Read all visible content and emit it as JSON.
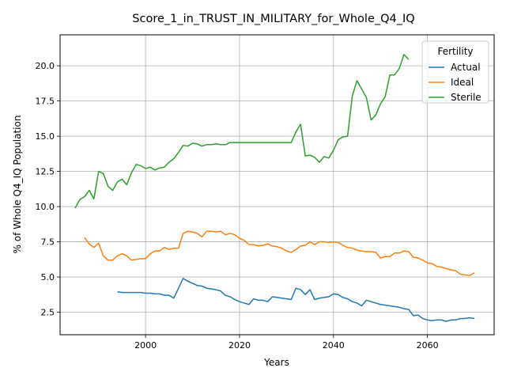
{
  "chart_data": {
    "type": "line",
    "title": "Score_1_in_TRUST_IN_MILITARY_for_Whole_Q4_IQ",
    "xlabel": "Years",
    "ylabel": "% of Whole Q4_IQ Population",
    "xlim": [
      1981.8,
      2074.2
    ],
    "ylim": [
      0.9,
      22.2
    ],
    "xticks": [
      2000,
      2020,
      2040,
      2060
    ],
    "xtick_labels": [
      "2000",
      "2020",
      "2040",
      "2060"
    ],
    "yticks": [
      2.5,
      5.0,
      7.5,
      10.0,
      12.5,
      15.0,
      17.5,
      20.0
    ],
    "ytick_labels": [
      "2.5",
      "5.0",
      "7.5",
      "10.0",
      "12.5",
      "15.0",
      "17.5",
      "20.0"
    ],
    "grid": true,
    "legend": {
      "title": "Fertility",
      "placement": "top-right"
    },
    "series": [
      {
        "name": "Actual",
        "color": "#1f77b4",
        "x": [
          1994,
          1995,
          1996,
          1997,
          1998,
          1999,
          2000,
          2001,
          2002,
          2003,
          2004,
          2005,
          2006,
          2007,
          2008,
          2009,
          2010,
          2011,
          2012,
          2013,
          2014,
          2015,
          2016,
          2017,
          2018,
          2019,
          2020,
          2021,
          2022,
          2023,
          2024,
          2025,
          2026,
          2027,
          2028,
          2029,
          2030,
          2031,
          2032,
          2033,
          2034,
          2035,
          2036,
          2037,
          2038,
          2039,
          2040,
          2041,
          2042,
          2043,
          2044,
          2045,
          2046,
          2047,
          2048,
          2049,
          2050,
          2051,
          2052,
          2053,
          2054,
          2055,
          2056,
          2057,
          2058,
          2059,
          2060,
          2061,
          2062,
          2063,
          2064,
          2065,
          2066,
          2067,
          2068,
          2069,
          2070
        ],
        "values": [
          3.95,
          3.9,
          3.9,
          3.9,
          3.9,
          3.9,
          3.85,
          3.85,
          3.8,
          3.8,
          3.7,
          3.7,
          3.5,
          4.2,
          4.9,
          4.7,
          4.55,
          4.4,
          4.35,
          4.2,
          4.15,
          4.1,
          4.0,
          3.7,
          3.6,
          3.4,
          3.25,
          3.15,
          3.05,
          3.45,
          3.35,
          3.35,
          3.25,
          3.6,
          3.55,
          3.5,
          3.45,
          3.4,
          4.2,
          4.1,
          3.75,
          4.1,
          3.4,
          3.5,
          3.55,
          3.6,
          3.8,
          3.75,
          3.55,
          3.45,
          3.25,
          3.15,
          2.95,
          3.35,
          3.25,
          3.15,
          3.05,
          3.0,
          2.95,
          2.9,
          2.85,
          2.75,
          2.7,
          2.25,
          2.3,
          2.05,
          1.95,
          1.9,
          1.95,
          1.95,
          1.85,
          1.95,
          1.95,
          2.05,
          2.05,
          2.1,
          2.05
        ]
      },
      {
        "name": "Ideal",
        "color": "#ff7f0e",
        "x": [
          1987,
          1988,
          1989,
          1990,
          1991,
          1992,
          1993,
          1994,
          1995,
          1996,
          1997,
          1998,
          1999,
          2000,
          2001,
          2002,
          2003,
          2004,
          2005,
          2006,
          2007,
          2008,
          2009,
          2010,
          2011,
          2012,
          2013,
          2014,
          2015,
          2016,
          2017,
          2018,
          2019,
          2020,
          2021,
          2022,
          2023,
          2024,
          2025,
          2026,
          2027,
          2028,
          2029,
          2030,
          2031,
          2032,
          2033,
          2034,
          2035,
          2036,
          2037,
          2038,
          2039,
          2040,
          2041,
          2042,
          2043,
          2044,
          2045,
          2046,
          2047,
          2048,
          2049,
          2050,
          2051,
          2052,
          2053,
          2054,
          2055,
          2056,
          2057,
          2058,
          2059,
          2060,
          2061,
          2062,
          2063,
          2064,
          2065,
          2066,
          2067,
          2068,
          2069,
          2070
        ],
        "values": [
          7.8,
          7.35,
          7.1,
          7.4,
          6.5,
          6.2,
          6.2,
          6.5,
          6.65,
          6.5,
          6.2,
          6.25,
          6.3,
          6.3,
          6.65,
          6.85,
          6.85,
          7.1,
          6.95,
          7.05,
          7.05,
          8.1,
          8.25,
          8.2,
          8.1,
          7.85,
          8.25,
          8.25,
          8.2,
          8.25,
          8.0,
          8.1,
          8.0,
          7.75,
          7.6,
          7.3,
          7.3,
          7.2,
          7.25,
          7.35,
          7.2,
          7.15,
          7.05,
          6.85,
          6.75,
          6.95,
          7.2,
          7.25,
          7.5,
          7.3,
          7.5,
          7.5,
          7.45,
          7.5,
          7.45,
          7.25,
          7.1,
          7.05,
          6.9,
          6.85,
          6.8,
          6.8,
          6.75,
          6.35,
          6.45,
          6.45,
          6.7,
          6.7,
          6.85,
          6.8,
          6.4,
          6.35,
          6.2,
          6.0,
          5.95,
          5.75,
          5.7,
          5.6,
          5.5,
          5.45,
          5.2,
          5.15,
          5.1,
          5.3
        ]
      },
      {
        "name": "Sterile",
        "color": "#2ca02c",
        "x": [
          1985,
          1986,
          1987,
          1988,
          1989,
          1990,
          1991,
          1992,
          1993,
          1994,
          1995,
          1996,
          1997,
          1998,
          1999,
          2000,
          2001,
          2002,
          2003,
          2004,
          2005,
          2006,
          2007,
          2008,
          2009,
          2010,
          2011,
          2012,
          2013,
          2014,
          2015,
          2016,
          2017,
          2018,
          2019,
          2020,
          2021,
          2022,
          2023,
          2024,
          2025,
          2026,
          2027,
          2028,
          2029,
          2030,
          2031,
          2032,
          2033,
          2034,
          2035,
          2036,
          2037,
          2038,
          2039,
          2040,
          2041,
          2042,
          2043,
          2044,
          2045,
          2046,
          2047,
          2048,
          2049,
          2050,
          2051,
          2052,
          2053,
          2054,
          2055,
          2056
        ],
        "values": [
          9.9,
          10.5,
          10.7,
          11.15,
          10.55,
          12.5,
          12.35,
          11.45,
          11.15,
          11.75,
          11.95,
          11.55,
          12.4,
          13.0,
          12.9,
          12.7,
          12.8,
          12.6,
          12.75,
          12.8,
          13.15,
          13.4,
          13.85,
          14.35,
          14.3,
          14.5,
          14.45,
          14.3,
          14.4,
          14.4,
          14.45,
          14.4,
          14.4,
          14.55,
          14.55,
          14.55,
          14.55,
          14.55,
          14.55,
          14.55,
          14.55,
          14.55,
          14.55,
          14.55,
          14.55,
          14.55,
          14.55,
          15.3,
          15.85,
          13.6,
          13.65,
          13.5,
          13.15,
          13.55,
          13.45,
          14.0,
          14.75,
          14.95,
          15.0,
          17.85,
          18.95,
          18.35,
          17.75,
          16.15,
          16.5,
          17.3,
          17.8,
          19.35,
          19.35,
          19.8,
          20.8,
          20.45
        ]
      }
    ]
  }
}
